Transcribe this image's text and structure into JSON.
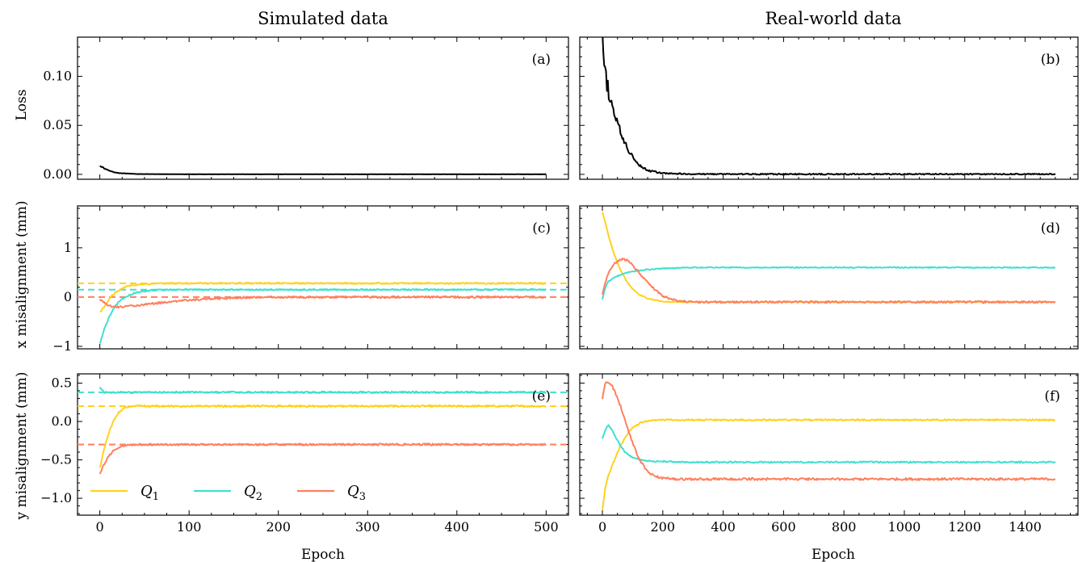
{
  "columns": {
    "left_title": "Simulated data",
    "right_title": "Real-world data"
  },
  "axis_labels": {
    "loss": "Loss",
    "x_misalignment": "x misalignment (mm)",
    "y_misalignment": "y misalignment (mm)",
    "epoch": "Epoch"
  },
  "colors": {
    "Q1": "#FFD21F",
    "Q2": "#40E0D0",
    "Q3": "#FF7F5E",
    "loss": "#000000"
  },
  "chart_data": [
    {
      "id": "a",
      "panel_label": "(a)",
      "type": "line",
      "xlim": [
        -25,
        525
      ],
      "ylim": [
        -0.005,
        0.14
      ],
      "xticks": [
        0,
        100,
        200,
        300,
        400,
        500
      ],
      "xtick_labels_shown": false,
      "yticks": [
        0,
        0.05,
        0.1
      ],
      "ytick_labels": [
        "0.00",
        "0.05",
        "0.10"
      ],
      "series": [
        {
          "name": "",
          "color_key": "loss",
          "x": [
            0,
            5,
            10,
            15,
            20,
            30,
            40,
            60,
            100,
            200,
            300,
            400,
            500
          ],
          "y": [
            0.009,
            0.006,
            0.004,
            0.0025,
            0.0015,
            0.0008,
            0.0004,
            0.0002,
            0.0001,
            0.0001,
            0.0001,
            0.0001,
            0.0001
          ],
          "noise": 0.0004,
          "noise_decay": 30
        }
      ]
    },
    {
      "id": "b",
      "panel_label": "(b)",
      "type": "line",
      "xlim": [
        -75,
        1575
      ],
      "ylim": [
        -0.005,
        0.14
      ],
      "xticks": [
        0,
        200,
        400,
        600,
        800,
        1000,
        1200,
        1400
      ],
      "xtick_labels_shown": false,
      "yticks": [
        0,
        0.05,
        0.1
      ],
      "ytick_labels": [],
      "series": [
        {
          "name": "",
          "color_key": "loss",
          "x": [
            0,
            5,
            10,
            20,
            30,
            40,
            50,
            60,
            80,
            100,
            125,
            150,
            200,
            300,
            500,
            1000,
            1500
          ],
          "y": [
            0.135,
            0.115,
            0.1,
            0.085,
            0.072,
            0.062,
            0.052,
            0.043,
            0.028,
            0.018,
            0.009,
            0.004,
            0.001,
            0.0003,
            0.0002,
            0.0002,
            0.0002
          ],
          "noise": 0.012,
          "noise_decay": 45
        }
      ]
    },
    {
      "id": "c",
      "panel_label": "(c)",
      "type": "line",
      "xlim": [
        -25,
        525
      ],
      "ylim": [
        -1.05,
        1.85
      ],
      "xticks": [
        0,
        100,
        200,
        300,
        400,
        500
      ],
      "xtick_labels_shown": false,
      "yticks": [
        -1,
        0,
        1
      ],
      "ytick_labels": [
        "−1",
        "0",
        "1"
      ],
      "hlines": [
        {
          "y": 0.28,
          "color_key": "Q1"
        },
        {
          "y": 0.15,
          "color_key": "Q2"
        },
        {
          "y": 0.0,
          "color_key": "Q3"
        }
      ],
      "series": [
        {
          "name": "Q1",
          "color_key": "Q1",
          "x": [
            0,
            5,
            10,
            15,
            20,
            25,
            30,
            40,
            60,
            80,
            100,
            200,
            300,
            400,
            500
          ],
          "y": [
            -0.3,
            -0.2,
            -0.05,
            0.05,
            0.12,
            0.17,
            0.21,
            0.25,
            0.27,
            0.28,
            0.28,
            0.28,
            0.28,
            0.28,
            0.28
          ],
          "noise": 0.015
        },
        {
          "name": "Q2",
          "color_key": "Q2",
          "x": [
            0,
            5,
            10,
            15,
            20,
            30,
            40,
            50,
            60,
            80,
            100,
            200,
            300,
            400,
            500
          ],
          "y": [
            -0.95,
            -0.65,
            -0.42,
            -0.25,
            -0.12,
            0.02,
            0.09,
            0.12,
            0.14,
            0.15,
            0.15,
            0.15,
            0.15,
            0.15,
            0.15
          ],
          "noise": 0.015
        },
        {
          "name": "Q3",
          "color_key": "Q3",
          "x": [
            0,
            5,
            10,
            20,
            30,
            40,
            60,
            80,
            100,
            130,
            160,
            200,
            300,
            400,
            500
          ],
          "y": [
            -0.05,
            -0.12,
            -0.18,
            -0.2,
            -0.19,
            -0.17,
            -0.13,
            -0.09,
            -0.06,
            -0.03,
            -0.01,
            0.0,
            0.0,
            0.0,
            0.0
          ],
          "noise": 0.02
        }
      ]
    },
    {
      "id": "d",
      "panel_label": "(d)",
      "type": "line",
      "xlim": [
        -75,
        1575
      ],
      "ylim": [
        -1.05,
        1.85
      ],
      "xticks": [
        0,
        200,
        400,
        600,
        800,
        1000,
        1200,
        1400
      ],
      "xtick_labels_shown": false,
      "yticks": [
        -1,
        0,
        1
      ],
      "ytick_labels": [],
      "series": [
        {
          "name": "Q1",
          "color_key": "Q1",
          "x": [
            0,
            10,
            20,
            40,
            60,
            80,
            100,
            120,
            150,
            200,
            250,
            300,
            1500
          ],
          "y": [
            1.72,
            1.5,
            1.25,
            0.85,
            0.55,
            0.32,
            0.17,
            0.06,
            -0.03,
            -0.09,
            -0.1,
            -0.1,
            -0.1
          ],
          "noise": 0.01
        },
        {
          "name": "Q2",
          "color_key": "Q2",
          "x": [
            0,
            10,
            20,
            40,
            60,
            80,
            100,
            150,
            200,
            300,
            400,
            500,
            1500
          ],
          "y": [
            -0.05,
            0.2,
            0.32,
            0.4,
            0.45,
            0.49,
            0.52,
            0.56,
            0.58,
            0.6,
            0.6,
            0.6,
            0.6
          ],
          "noise": 0.01
        },
        {
          "name": "Q3",
          "color_key": "Q3",
          "x": [
            0,
            10,
            20,
            40,
            60,
            70,
            80,
            100,
            120,
            150,
            180,
            200,
            250,
            300,
            1500
          ],
          "y": [
            0.05,
            0.3,
            0.5,
            0.68,
            0.76,
            0.77,
            0.75,
            0.65,
            0.5,
            0.3,
            0.12,
            0.02,
            -0.08,
            -0.1,
            -0.1
          ],
          "noise": 0.02
        }
      ]
    },
    {
      "id": "e",
      "panel_label": "(e)",
      "type": "line",
      "xlim": [
        -25,
        525
      ],
      "ylim": [
        -1.22,
        0.62
      ],
      "xticks": [
        0,
        100,
        200,
        300,
        400,
        500
      ],
      "xtick_labels": [
        "0",
        "100",
        "200",
        "300",
        "400",
        "500"
      ],
      "yticks": [
        -1.0,
        -0.5,
        0.0,
        0.5
      ],
      "ytick_labels": [
        "−1.0",
        "−0.5",
        "0.0",
        "0.5"
      ],
      "hlines": [
        {
          "y": 0.38,
          "color_key": "Q2"
        },
        {
          "y": 0.2,
          "color_key": "Q1"
        },
        {
          "y": -0.3,
          "color_key": "Q3"
        }
      ],
      "series": [
        {
          "name": "Q1",
          "color_key": "Q1",
          "x": [
            0,
            5,
            10,
            15,
            20,
            25,
            30,
            40,
            500
          ],
          "y": [
            -0.6,
            -0.35,
            -0.15,
            0.0,
            0.1,
            0.16,
            0.19,
            0.2,
            0.2
          ],
          "noise": 0.012
        },
        {
          "name": "Q2",
          "color_key": "Q2",
          "x": [
            0,
            2,
            5,
            10,
            20,
            500
          ],
          "y": [
            0.45,
            0.42,
            0.38,
            0.38,
            0.38,
            0.38
          ],
          "noise": 0.012
        },
        {
          "name": "Q3",
          "color_key": "Q3",
          "x": [
            0,
            5,
            10,
            15,
            20,
            25,
            30,
            40,
            500
          ],
          "y": [
            -0.68,
            -0.55,
            -0.45,
            -0.38,
            -0.34,
            -0.32,
            -0.31,
            -0.3,
            -0.3
          ],
          "noise": 0.012
        }
      ],
      "legend": {
        "placement": "bottom-left",
        "entries": [
          {
            "label": "Q",
            "subscript": "1",
            "color_key": "Q1"
          },
          {
            "label": "Q",
            "subscript": "2",
            "color_key": "Q2"
          },
          {
            "label": "Q",
            "subscript": "3",
            "color_key": "Q3"
          }
        ]
      }
    },
    {
      "id": "f",
      "panel_label": "(f)",
      "type": "line",
      "xlim": [
        -75,
        1575
      ],
      "ylim": [
        -1.22,
        0.62
      ],
      "xticks": [
        0,
        200,
        400,
        600,
        800,
        1000,
        1200,
        1400
      ],
      "xtick_labels": [
        "0",
        "200",
        "400",
        "600",
        "800",
        "1000",
        "1200",
        "1400"
      ],
      "yticks": [
        -1.0,
        -0.5,
        0.0,
        0.5
      ],
      "ytick_labels": [],
      "series": [
        {
          "name": "Q1",
          "color_key": "Q1",
          "x": [
            0,
            10,
            20,
            40,
            60,
            80,
            100,
            130,
            160,
            200,
            250,
            1500
          ],
          "y": [
            -1.15,
            -0.85,
            -0.7,
            -0.5,
            -0.32,
            -0.18,
            -0.08,
            -0.01,
            0.01,
            0.02,
            0.02,
            0.02
          ],
          "noise": 0.01
        },
        {
          "name": "Q2",
          "color_key": "Q2",
          "x": [
            0,
            10,
            20,
            30,
            40,
            60,
            80,
            100,
            130,
            160,
            200,
            300,
            1500
          ],
          "y": [
            -0.22,
            -0.1,
            -0.05,
            -0.1,
            -0.18,
            -0.32,
            -0.42,
            -0.47,
            -0.5,
            -0.52,
            -0.52,
            -0.53,
            -0.53
          ],
          "noise": 0.01
        },
        {
          "name": "Q3",
          "color_key": "Q3",
          "x": [
            0,
            10,
            20,
            30,
            40,
            60,
            80,
            100,
            120,
            140,
            160,
            180,
            200,
            250,
            300,
            1500
          ],
          "y": [
            0.3,
            0.5,
            0.52,
            0.48,
            0.4,
            0.2,
            -0.05,
            -0.28,
            -0.48,
            -0.6,
            -0.68,
            -0.72,
            -0.74,
            -0.75,
            -0.75,
            -0.75
          ],
          "noise": 0.015
        }
      ]
    }
  ]
}
